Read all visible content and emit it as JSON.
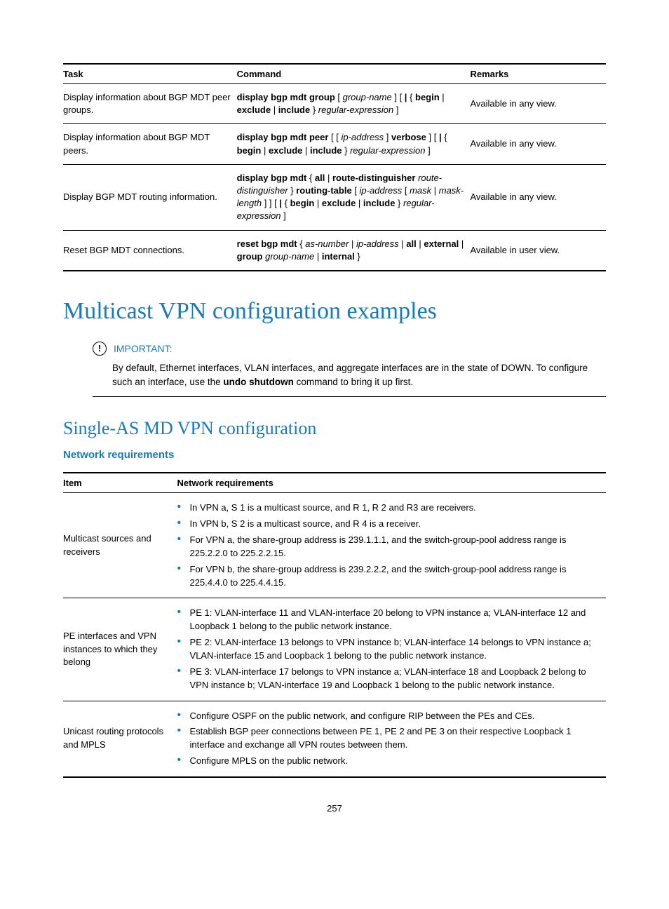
{
  "colors": {
    "accent": "#1a7ab8",
    "text": "#000000",
    "background": "#ffffff"
  },
  "typography": {
    "body_fontsize": 13,
    "h1_fontsize": 34,
    "h2_fontsize": 26,
    "h3_fontsize": 15
  },
  "cmd_table": {
    "headers": [
      "Task",
      "Command",
      "Remarks"
    ],
    "col_widths_pct": [
      32,
      43,
      25
    ],
    "rows": [
      {
        "task": "Display information about BGP MDT peer groups.",
        "remarks": "Available in any view."
      },
      {
        "task": "Display information about BGP MDT peers.",
        "remarks": "Available in any view."
      },
      {
        "task": "Display BGP MDT routing information.",
        "remarks": "Available in any view."
      },
      {
        "task": "Reset BGP MDT connections.",
        "remarks": "Available in user view."
      }
    ]
  },
  "h1": "Multicast VPN configuration examples",
  "important": {
    "label": "IMPORTANT:",
    "text_pre": "By default, Ethernet interfaces, VLAN interfaces, and aggregate interfaces are in the state of DOWN. To configure such an interface, use the ",
    "text_bold": "undo shutdown",
    "text_post": " command to bring it up first."
  },
  "h2": "Single-AS MD VPN configuration",
  "h3": "Network requirements",
  "req_table": {
    "headers": [
      "Item",
      "Network requirements"
    ],
    "col_widths_pct": [
      21,
      79
    ],
    "rows": [
      {
        "item": "Multicast sources and receivers",
        "bullets": [
          "In VPN a, S 1 is a multicast source, and R 1, R 2 and R3 are receivers.",
          "In VPN b, S 2 is a multicast source, and R 4 is a receiver.",
          "For VPN a, the share-group address is 239.1.1.1, and the switch-group-pool address range is 225.2.2.0 to 225.2.2.15.",
          "For VPN b, the share-group address is 239.2.2.2, and the switch-group-pool address range is 225.4.4.0 to 225.4.4.15."
        ]
      },
      {
        "item": "PE interfaces and VPN instances to which they belong",
        "bullets": [
          "PE 1: VLAN-interface 11 and VLAN-interface 20 belong to VPN instance a; VLAN-interface 12 and Loopback 1 belong to the public network instance.",
          "PE 2: VLAN-interface 13 belongs to VPN instance b; VLAN-interface 14 belongs to VPN instance a; VLAN-interface 15 and Loopback 1 belong to the public network instance.",
          "PE 3: VLAN-interface 17 belongs to VPN instance a; VLAN-interface 18 and Loopback 2 belong to VPN instance b; VLAN-interface 19 and Loopback 1 belong to the public network instance."
        ]
      },
      {
        "item": "Unicast routing protocols and MPLS",
        "bullets": [
          "Configure OSPF on the public network, and configure RIP between the PEs and CEs.",
          "Establish BGP peer connections between PE 1, PE 2 and PE 3 on their respective Loopback 1 interface and exchange all VPN routes between them.",
          "Configure MPLS on the public network."
        ]
      }
    ]
  },
  "page_number": "257"
}
